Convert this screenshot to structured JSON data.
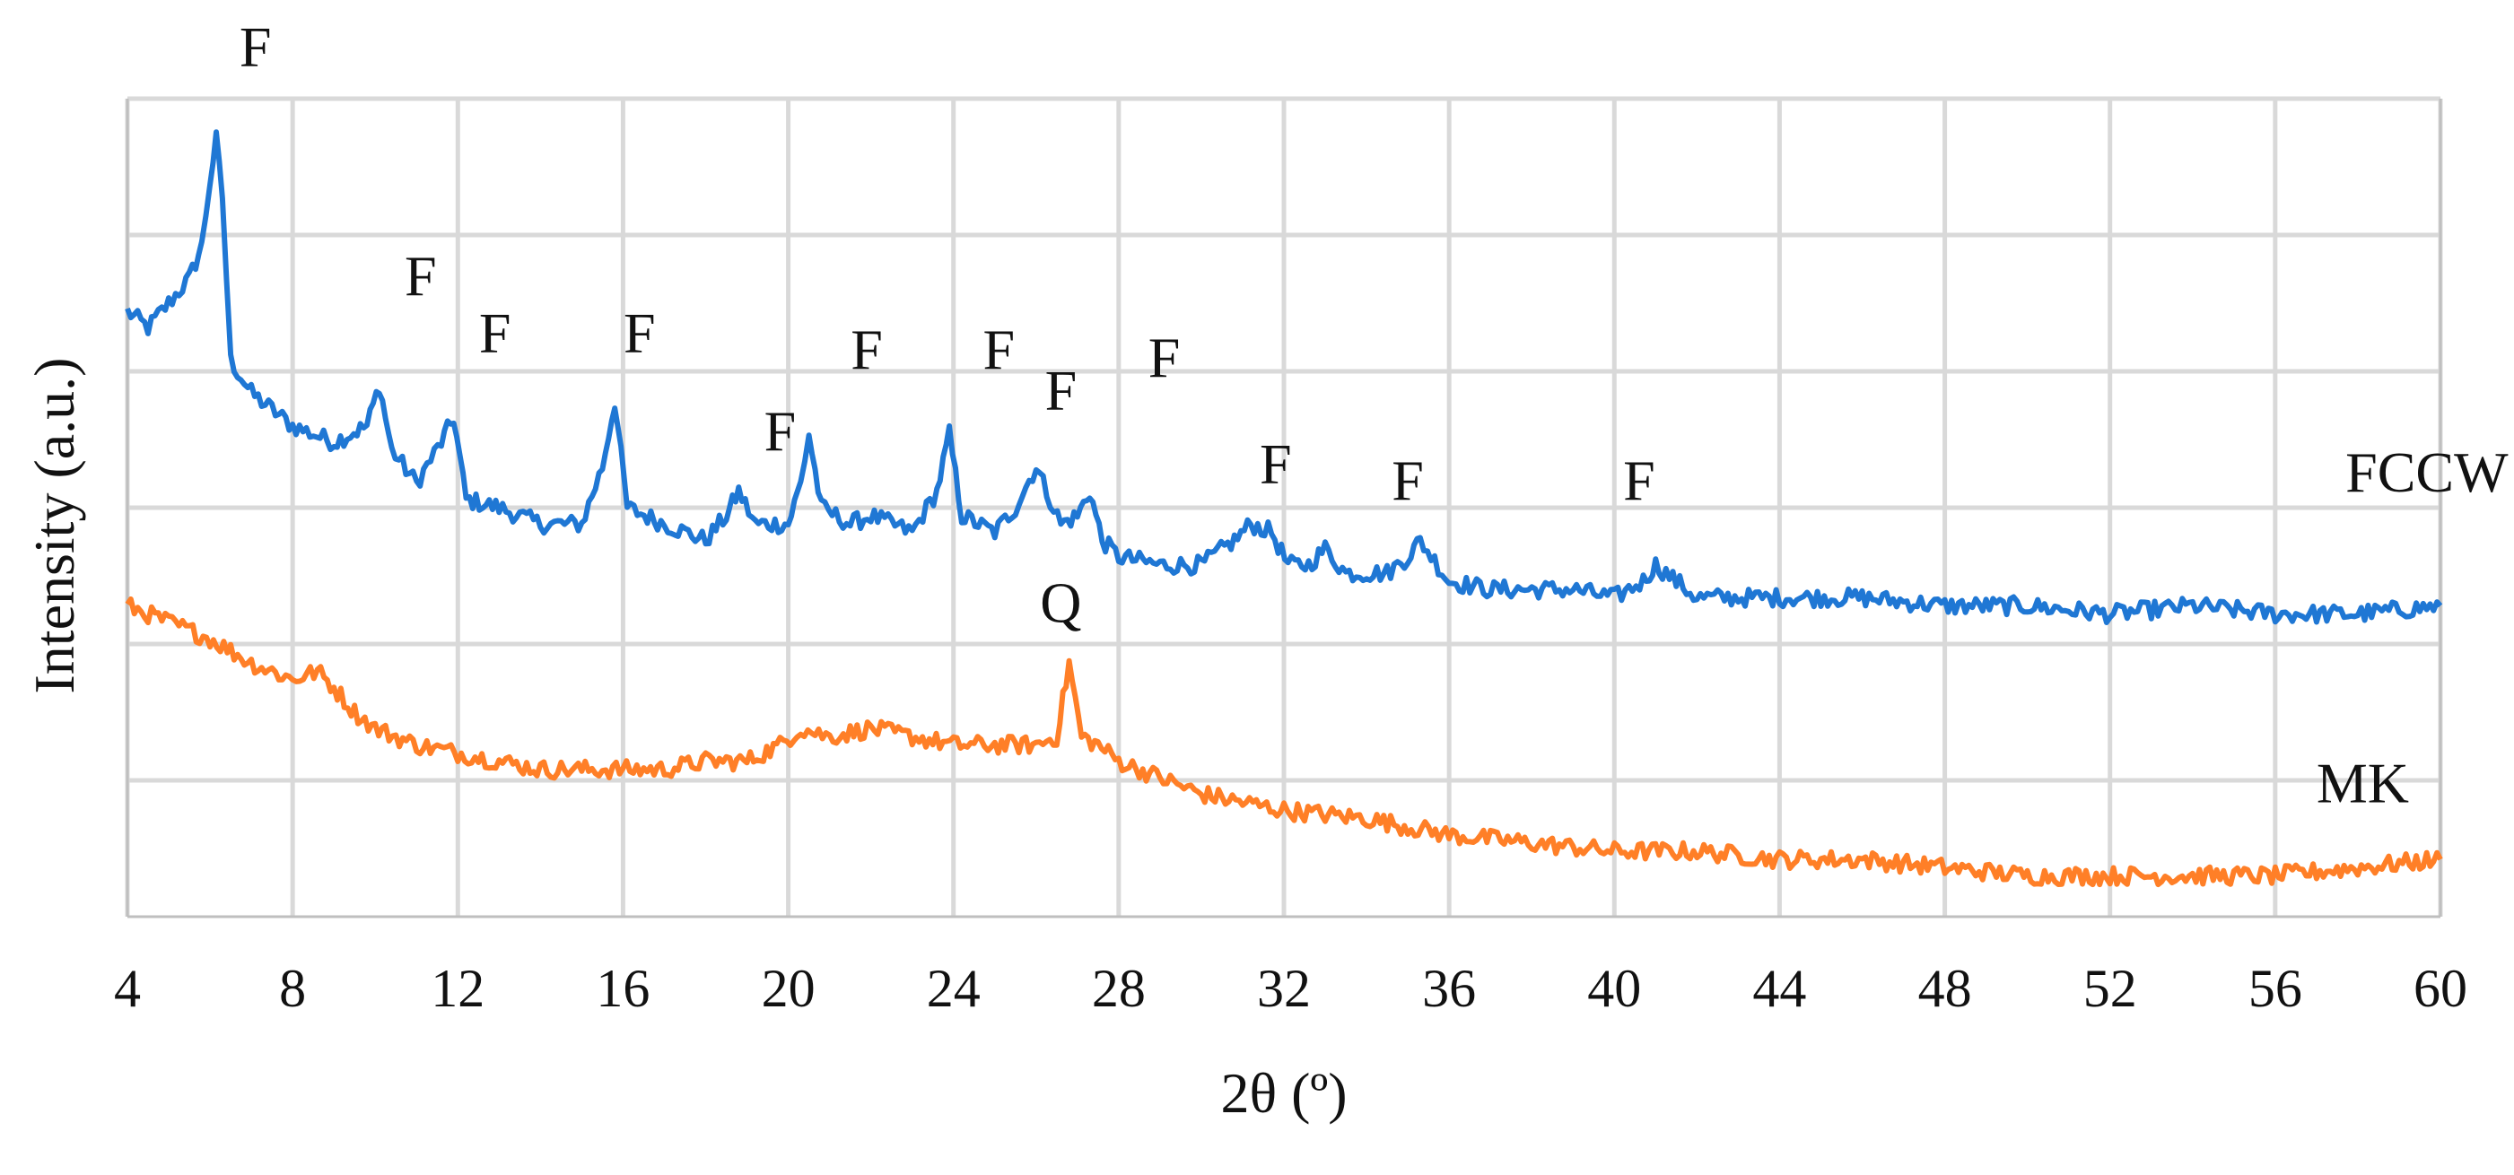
{
  "chart_data": {
    "type": "line",
    "title": "",
    "xlabel": "2θ (º)",
    "ylabel": "Intensity (a.u.)",
    "xlim": [
      4,
      60
    ],
    "ylim": [
      0,
      100
    ],
    "x_ticks": [
      "4",
      "8",
      "12",
      "16",
      "20",
      "24",
      "28",
      "32",
      "36",
      "40",
      "44",
      "48",
      "52",
      "56",
      "60"
    ],
    "grid": "on",
    "y_tick_labels": "none",
    "colors": {
      "FCCW": "#1f77d4",
      "MK": "#ff7f27"
    },
    "series": [
      {
        "name": "FCCW",
        "color": "#1f77d4",
        "x": [
          4,
          4.5,
          5,
          5.5,
          5.8,
          6.0,
          6.15,
          6.3,
          6.5,
          7,
          8,
          9,
          9.8,
          10.1,
          10.4,
          11,
          11.6,
          11.9,
          12.2,
          13,
          14,
          15,
          15.5,
          15.8,
          16.1,
          17,
          18,
          18.5,
          18.8,
          19.2,
          20,
          20.3,
          20.5,
          20.8,
          21.5,
          22,
          23,
          23.6,
          23.9,
          24.2,
          25,
          25.5,
          26,
          26.6,
          27,
          27.3,
          27.6,
          28,
          29,
          30,
          30.8,
          31.2,
          31.7,
          32.1,
          32.6,
          33,
          33.5,
          34.5,
          35,
          35.3,
          36,
          37,
          38,
          39,
          40,
          40.7,
          41,
          42,
          44,
          46,
          48,
          50,
          52,
          54,
          56,
          58,
          60
        ],
        "y": [
          74,
          72,
          75,
          78,
          82,
          90,
          95,
          88,
          68,
          64,
          60,
          58,
          60,
          65,
          57,
          53,
          58,
          61,
          51,
          50,
          48,
          48,
          55,
          63,
          50,
          48,
          46,
          49,
          52,
          48,
          48,
          53,
          59,
          50,
          48,
          49,
          47,
          52,
          59,
          49,
          47,
          50,
          55,
          48,
          49,
          52,
          46,
          44,
          43,
          43,
          46,
          48,
          47,
          43,
          43,
          45,
          42,
          42,
          44,
          46,
          41,
          40,
          40,
          40,
          39,
          41,
          43,
          39,
          39,
          39,
          38,
          38,
          37,
          38,
          37,
          37,
          38
        ]
      },
      {
        "name": "MK",
        "color": "#ff7f27",
        "x": [
          4,
          5,
          6,
          7,
          8,
          8.6,
          9,
          9.5,
          10,
          11,
          12,
          13,
          14,
          15,
          16,
          17,
          18,
          19,
          19.8,
          20.3,
          21,
          22,
          23,
          24,
          25,
          26,
          26.5,
          26.8,
          27.1,
          27.5,
          28,
          29,
          30,
          32,
          34,
          36,
          38,
          40,
          42,
          44,
          46,
          48,
          50,
          52,
          54,
          56,
          58,
          60
        ],
        "y": [
          38,
          36,
          34,
          31,
          29,
          30,
          28,
          25,
          23,
          21,
          20,
          19,
          18,
          18,
          18,
          18,
          19,
          19,
          21,
          23,
          22,
          23,
          22,
          21,
          21,
          21,
          22,
          31,
          22,
          21,
          19,
          17,
          15,
          13,
          12,
          10,
          9,
          8,
          8,
          7,
          7,
          6,
          5,
          5,
          5,
          5,
          6,
          7
        ]
      }
    ],
    "annotations": [
      {
        "text": "F",
        "x": 7.1,
        "y": 104
      },
      {
        "text": "F",
        "x": 11.1,
        "y": 76
      },
      {
        "text": "F",
        "x": 12.9,
        "y": 69
      },
      {
        "text": "F",
        "x": 16.4,
        "y": 69
      },
      {
        "text": "F",
        "x": 19.8,
        "y": 57
      },
      {
        "text": "F",
        "x": 21.9,
        "y": 67
      },
      {
        "text": "F",
        "x": 25.1,
        "y": 67
      },
      {
        "text": "F",
        "x": 26.6,
        "y": 62
      },
      {
        "text": "F",
        "x": 29.1,
        "y": 66
      },
      {
        "text": "F",
        "x": 31.8,
        "y": 53
      },
      {
        "text": "F",
        "x": 35.0,
        "y": 51
      },
      {
        "text": "F",
        "x": 40.6,
        "y": 51
      },
      {
        "text": "Q",
        "x": 26.6,
        "y": 36
      }
    ],
    "series_labels": [
      {
        "text": "FCCW",
        "x": 57.7,
        "y": 52
      },
      {
        "text": "MK",
        "x": 57.0,
        "y": 14
      }
    ]
  }
}
